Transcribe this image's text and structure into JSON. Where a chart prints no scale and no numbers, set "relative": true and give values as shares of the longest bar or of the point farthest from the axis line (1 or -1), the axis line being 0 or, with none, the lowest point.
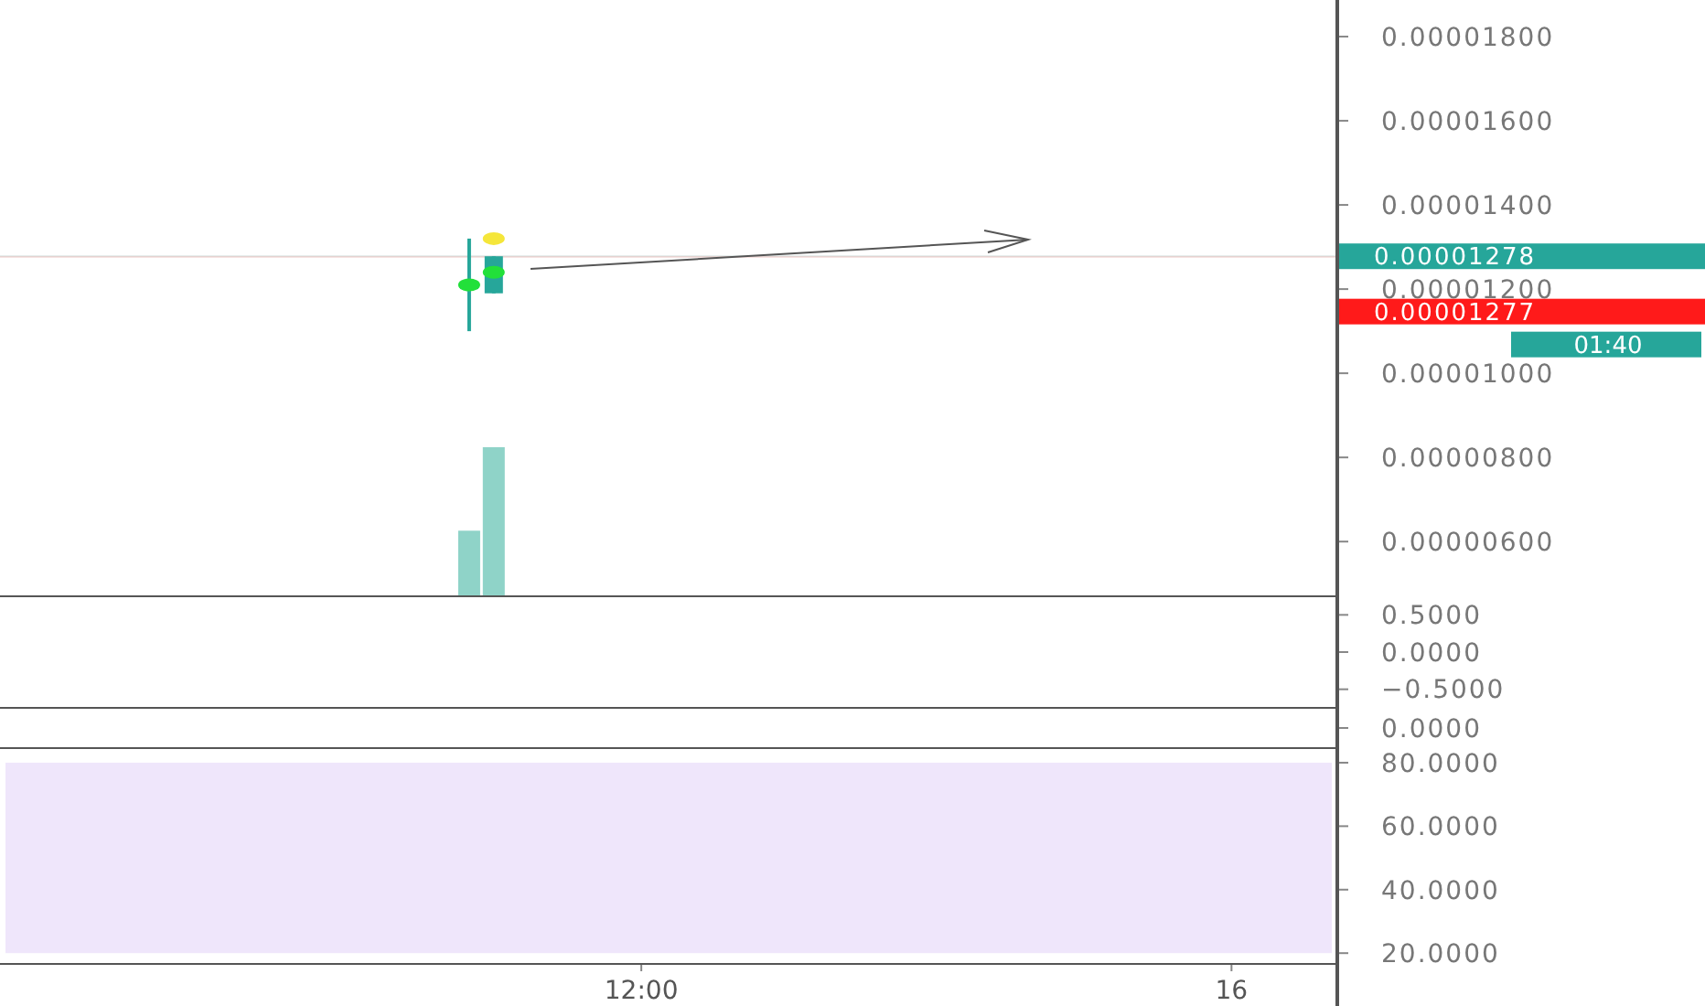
{
  "chart_data": [
    {
      "type": "candlestick",
      "categories": [
        null,
        null,
        null,
        null,
        null,
        null,
        null,
        null,
        null,
        null,
        null,
        null,
        null,
        null,
        null,
        null,
        null,
        null,
        null,
        null,
        null,
        null,
        null,
        null,
        null,
        null,
        null,
        null,
        null,
        null,
        null,
        null,
        null,
        null,
        null,
        null,
        null,
        null,
        null,
        null,
        null,
        null,
        null,
        null,
        null,
        null,
        null,
        null,
        null,
        null,
        null,
        null,
        null
      ],
      "ohlc": [
        null,
        null,
        null,
        null,
        null,
        null,
        null,
        null,
        null,
        null,
        null,
        null,
        null,
        null,
        null,
        null,
        null,
        null,
        [
          1.2e-05,
          1.32e-05,
          1.1e-05,
          1.21e-05
        ],
        [
          1.19e-05,
          1.278e-05,
          1.19e-05,
          1.278e-05
        ],
        null,
        null,
        null,
        null,
        null,
        null,
        null,
        null,
        null,
        null,
        null,
        null,
        null,
        null,
        null,
        null,
        null,
        null,
        null,
        null,
        null,
        null,
        null,
        null,
        null,
        null,
        null,
        null,
        null,
        null,
        null,
        null,
        null
      ],
      "colors": [
        null,
        null,
        null,
        null,
        null,
        null,
        null,
        null,
        null,
        null,
        null,
        null,
        null,
        null,
        null,
        null,
        null,
        null,
        "#26a69a",
        "#26a69a",
        null,
        null,
        null,
        null,
        null,
        null,
        null,
        null,
        null,
        null,
        null,
        null,
        null,
        null,
        null,
        null,
        null,
        null,
        null,
        null,
        null,
        null,
        null,
        null,
        null,
        null,
        null,
        null,
        null,
        null,
        null,
        null,
        null
      ],
      "series": [
        {
          "type": "scatter",
          "color": "#22e03a",
          "values": [
            null,
            null,
            null,
            null,
            null,
            null,
            null,
            null,
            null,
            null,
            null,
            null,
            null,
            null,
            null,
            null,
            null,
            null,
            1.21e-05,
            1.24e-05,
            null,
            null,
            null,
            null,
            null,
            null,
            null,
            null,
            null,
            null,
            null,
            null,
            null,
            null,
            null,
            null,
            null,
            null,
            null,
            null,
            null,
            null,
            null,
            null,
            null,
            null,
            null,
            null,
            null,
            null,
            null,
            null,
            null
          ]
        },
        {
          "type": "scatter",
          "color": "#f5e63a",
          "values": [
            null,
            null,
            null,
            null,
            null,
            null,
            null,
            null,
            null,
            null,
            null,
            null,
            null,
            null,
            null,
            null,
            null,
            null,
            null,
            1.32e-05,
            null,
            null,
            null,
            null,
            null,
            null,
            null,
            null,
            null,
            null,
            null,
            null,
            null,
            null,
            null,
            null,
            null,
            null,
            null,
            null,
            null,
            null,
            null,
            null,
            null,
            null,
            null,
            null,
            null,
            null,
            null,
            null,
            null
          ]
        }
      ],
      "marker": "circle",
      "ylim": [
        4.7e-06,
        1.887e-05
      ],
      "yticks": [
        {
          "value": 6e-06,
          "label": "0.00000600"
        },
        {
          "value": 8e-06,
          "label": "0.00000800"
        },
        {
          "value": 1e-05,
          "label": "0.00001000"
        },
        {
          "value": 1.2e-05,
          "label": "0.00001200"
        },
        {
          "value": 1.4e-05,
          "label": "0.00001400"
        },
        {
          "value": 1.6e-05,
          "label": "0.00001600"
        },
        {
          "value": 1.8e-05,
          "label": "0.00001800"
        }
      ],
      "ref_lines": [
        {
          "axis": "y",
          "value": 1.278e-05,
          "label": "0.00001278",
          "color": "#26a69a"
        },
        {
          "axis": "y",
          "value": 1.277e-05,
          "label": "0.00001277",
          "color": "#ff1a1a"
        }
      ],
      "annotations": [
        "01:40"
      ],
      "tick_labels": "y"
    },
    {
      "type": "bar",
      "relative": true,
      "categories": [
        null,
        null,
        null,
        null,
        null,
        null,
        null,
        null,
        null,
        null,
        null,
        null,
        null,
        null,
        null,
        null,
        null,
        null,
        null,
        null,
        null,
        null,
        null,
        null,
        null,
        null,
        null,
        null,
        null,
        null,
        null,
        null,
        null,
        null,
        null,
        null,
        null,
        null,
        null,
        null,
        null,
        null,
        null,
        null,
        null,
        null,
        null,
        null,
        null,
        null,
        null,
        null,
        null
      ],
      "values": [
        null,
        null,
        null,
        null,
        null,
        null,
        null,
        null,
        null,
        null,
        null,
        null,
        null,
        null,
        null,
        null,
        null,
        null,
        0.44,
        1,
        null,
        null,
        null,
        null,
        null,
        null,
        null,
        null,
        null,
        null,
        null,
        null,
        null,
        null,
        null,
        null,
        null,
        null,
        null,
        null,
        null,
        null,
        null,
        null,
        null,
        null,
        null,
        null,
        null,
        null,
        null,
        null,
        null
      ],
      "color": "#8fd3c8",
      "tick_labels": false
    },
    {
      "type": "other",
      "annotations": [
        "0.5000",
        "0.0000",
        "−0.5000"
      ]
    },
    {
      "type": "other",
      "annotations": [
        "0.0000"
      ]
    },
    {
      "type": "line",
      "categories": [
        null,
        null,
        null,
        null,
        null,
        null,
        null,
        null,
        null,
        null,
        null,
        null,
        null,
        null,
        null,
        null,
        null,
        null,
        null,
        null,
        null,
        null,
        null,
        null,
        null,
        "12:00",
        null,
        null,
        null,
        null,
        null,
        null,
        null,
        null,
        null,
        null,
        null,
        null,
        null,
        null,
        null,
        null,
        null,
        null,
        null,
        null,
        null,
        null,
        null,
        "16",
        null,
        null,
        null
      ],
      "values": [
        null,
        null,
        null,
        null,
        null,
        null,
        null,
        null,
        null,
        null,
        null,
        null,
        null,
        null,
        null,
        null,
        null,
        null,
        null,
        null,
        null,
        null,
        null,
        null,
        null,
        null,
        null,
        null,
        null,
        null,
        null,
        null,
        null,
        null,
        null,
        null,
        null,
        null,
        null,
        null,
        null,
        null,
        null,
        null,
        null,
        null,
        null,
        null,
        null,
        null,
        null,
        null,
        null
      ],
      "ylim": [
        16.6,
        84.6
      ],
      "yticks": [
        {
          "value": 80,
          "label": "80.0000"
        },
        {
          "value": 60,
          "label": "60.0000"
        },
        {
          "value": 40,
          "label": "40.0000"
        },
        {
          "value": 20,
          "label": "20.0000"
        }
      ],
      "bands": [
        {
          "axis": "y",
          "from": 20,
          "to": 80,
          "color": "#efe6fb"
        }
      ]
    }
  ]
}
